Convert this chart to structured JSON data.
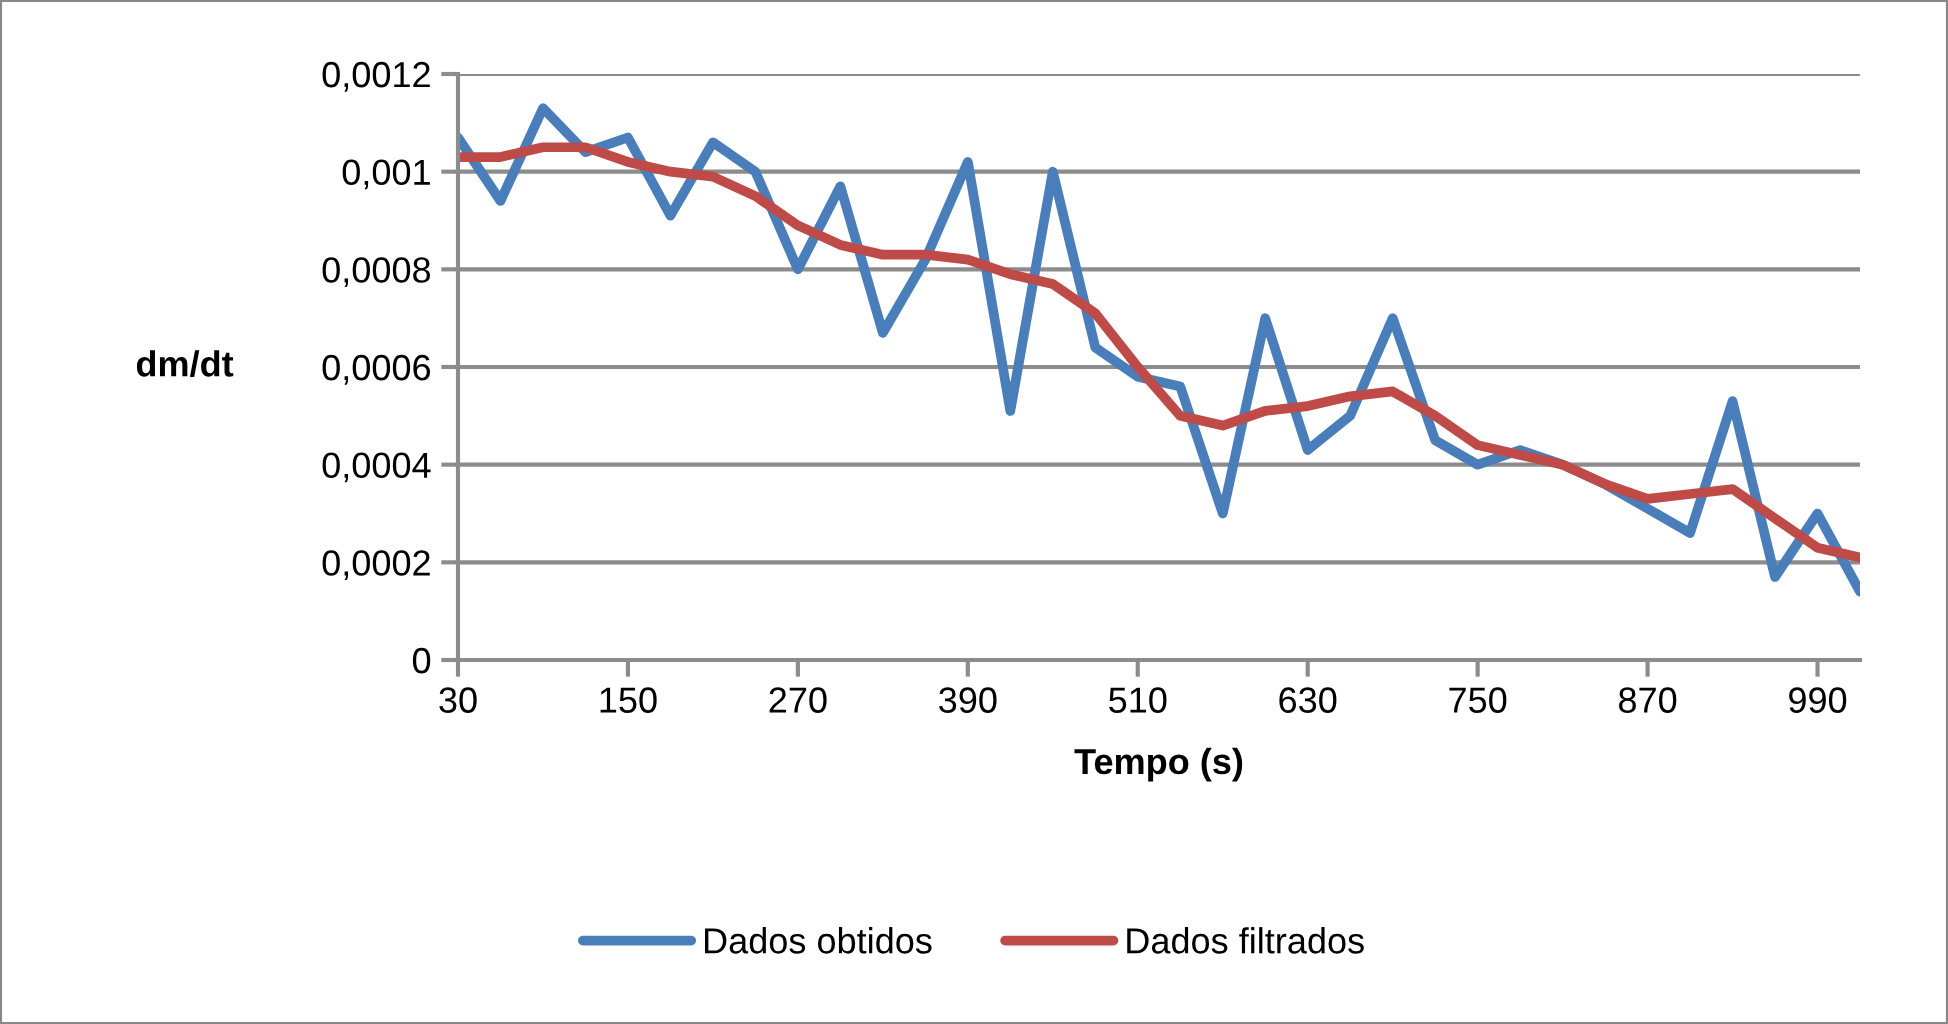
{
  "chart_data": {
    "type": "line",
    "xlabel": "Tempo (s)",
    "ylabel": "dm/dt",
    "x": [
      30,
      60,
      90,
      120,
      150,
      180,
      210,
      240,
      270,
      300,
      330,
      360,
      390,
      420,
      450,
      480,
      510,
      540,
      570,
      600,
      630,
      660,
      690,
      720,
      750,
      780,
      810,
      840,
      870,
      900,
      930,
      960,
      990,
      1020
    ],
    "series": [
      {
        "name": "Dados obtidos",
        "color": "#4a7ebb",
        "values": [
          0.00107,
          0.00094,
          0.00113,
          0.00104,
          0.00107,
          0.00091,
          0.00106,
          0.001,
          0.0008,
          0.00097,
          0.00067,
          0.00082,
          0.00102,
          0.00051,
          0.001,
          0.00064,
          0.00058,
          0.00056,
          0.0003,
          0.0007,
          0.00043,
          0.0005,
          0.0007,
          0.00045,
          0.0004,
          0.00043,
          0.0004,
          0.00036,
          0.00031,
          0.00026,
          0.00053,
          0.00017,
          0.0003,
          0.00014
        ]
      },
      {
        "name": "Dados filtrados",
        "color": "#be4b48",
        "values": [
          0.00103,
          0.00103,
          0.00105,
          0.00105,
          0.00102,
          0.001,
          0.00099,
          0.00095,
          0.00089,
          0.00085,
          0.00083,
          0.00083,
          0.00082,
          0.00079,
          0.00077,
          0.00071,
          0.0006,
          0.0005,
          0.00048,
          0.00051,
          0.00052,
          0.00054,
          0.00055,
          0.0005,
          0.00044,
          0.00042,
          0.0004,
          0.00036,
          0.00033,
          0.00034,
          0.00035,
          0.00029,
          0.00023,
          0.00021
        ]
      }
    ],
    "xlim": [
      30,
      1020
    ],
    "xticks": [
      30,
      150,
      270,
      390,
      510,
      630,
      750,
      870,
      990
    ],
    "ylim": [
      0,
      0.0012
    ],
    "yticks": [
      0,
      {
        "value": 0.0002,
        "label": "0,0002"
      },
      {
        "value": 0.0004,
        "label": "0,0004"
      },
      {
        "value": 0.0006,
        "label": "0,0006"
      },
      {
        "value": 0.0008,
        "label": "0,0008"
      },
      {
        "value": 0.001,
        "label": "0,001"
      },
      {
        "value": 0.0012,
        "label": "0,0012"
      }
    ],
    "grid": "y",
    "legend": "bottom",
    "marker": "none",
    "line_style": "solid"
  }
}
